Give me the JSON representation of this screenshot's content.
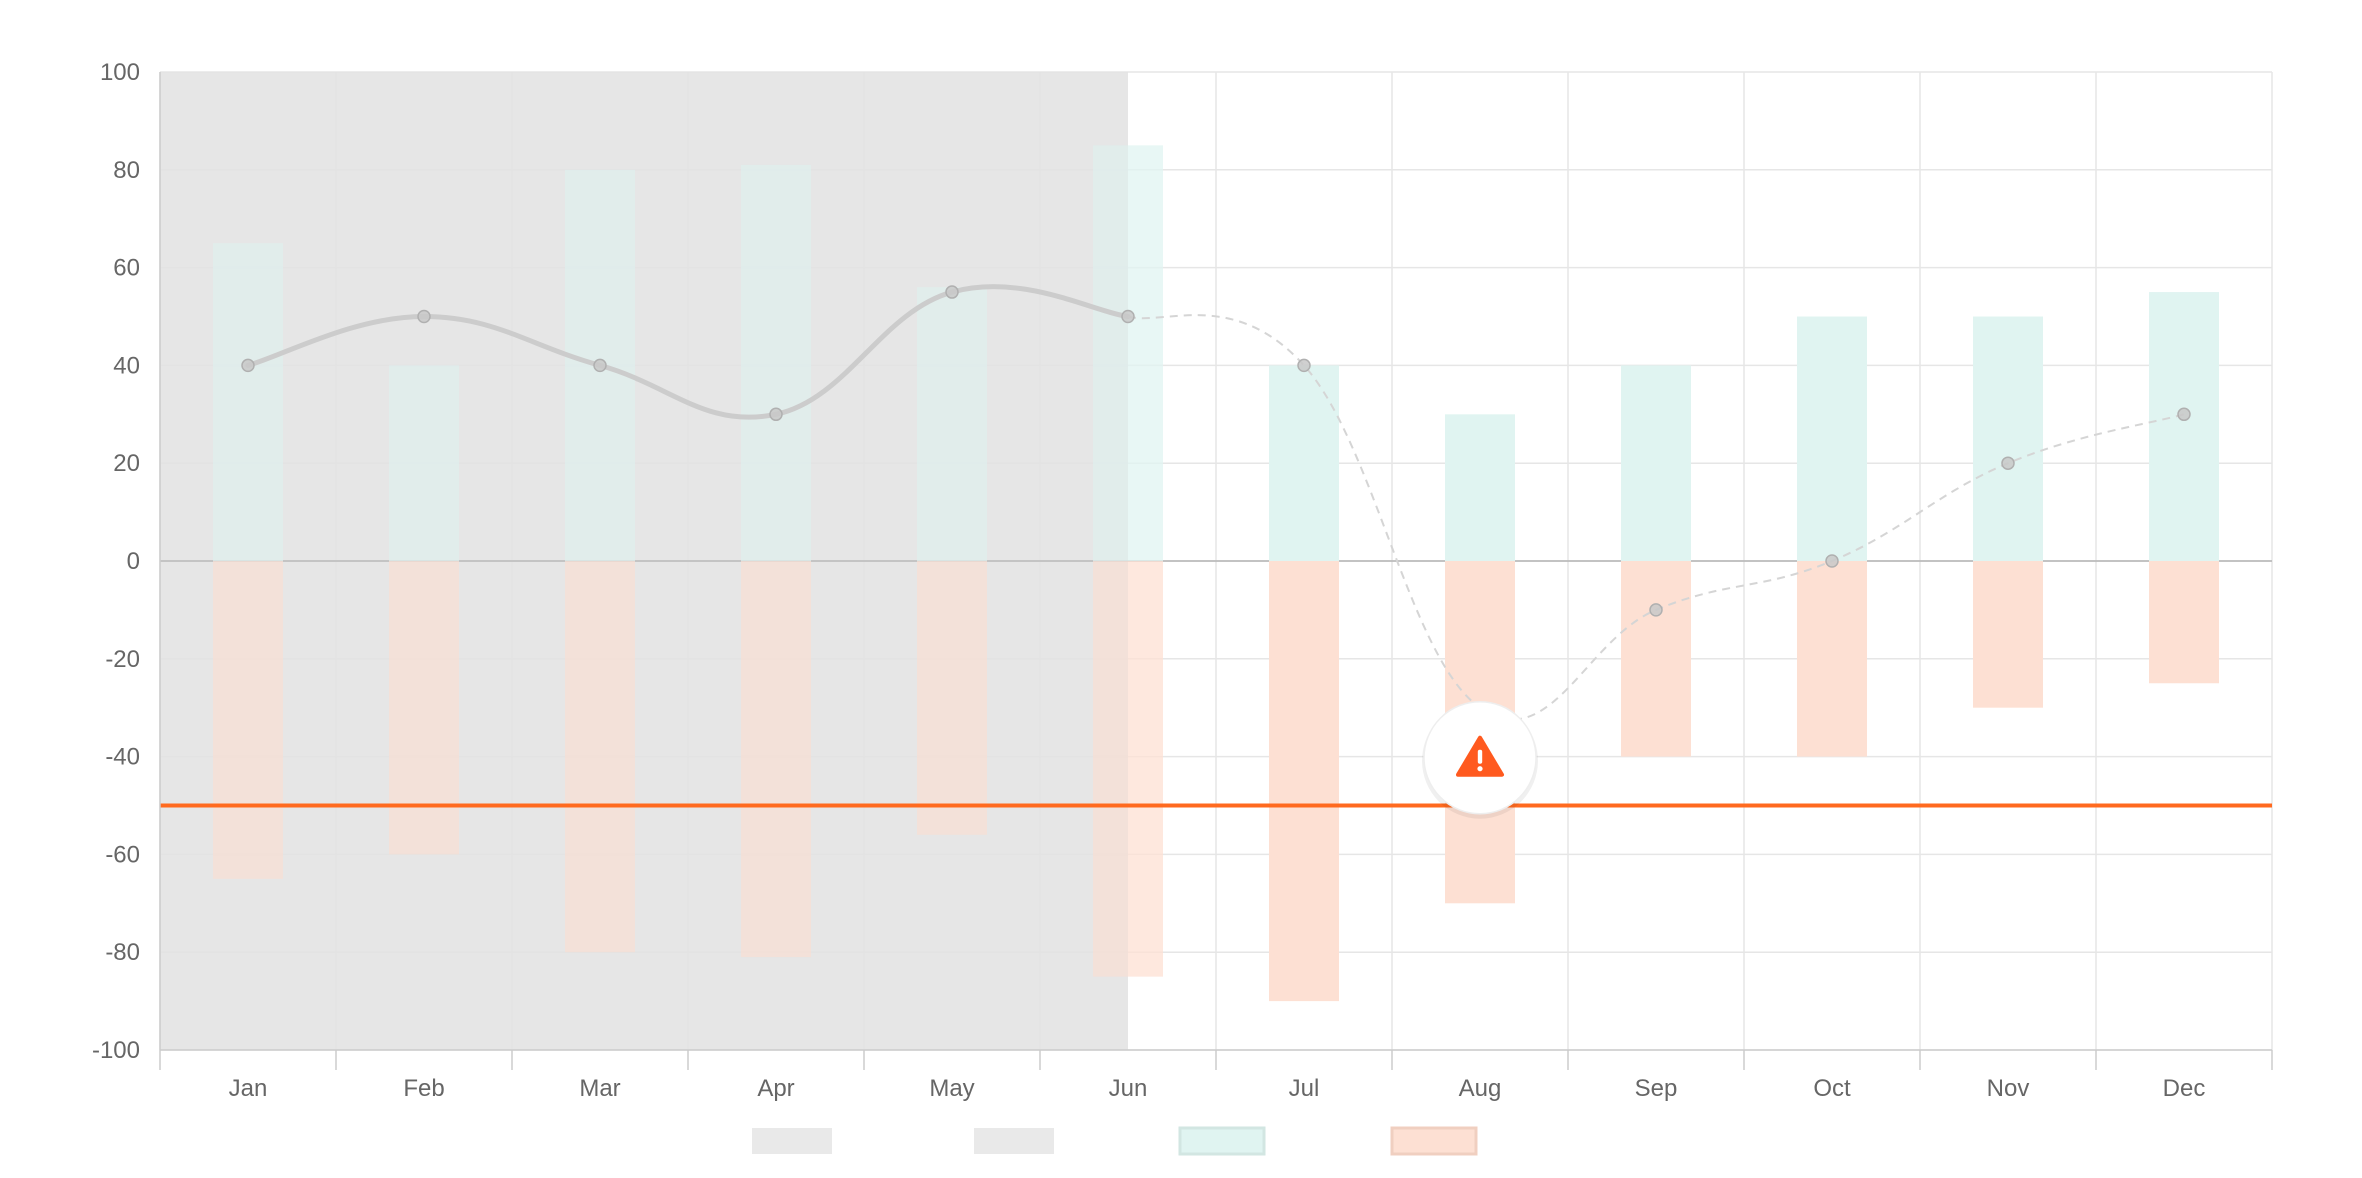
{
  "chart_data": {
    "type": "bar",
    "categories": [
      "Jan",
      "Feb",
      "Mar",
      "Apr",
      "May",
      "Jun",
      "Jul",
      "Aug",
      "Sep",
      "Oct",
      "Nov",
      "Dec"
    ],
    "series": [
      {
        "type": "bar",
        "values": [
          65,
          40,
          80,
          81,
          56,
          85,
          40,
          30,
          40,
          50,
          50,
          55
        ],
        "color": "#e0f4f1"
      },
      {
        "type": "bar",
        "values": [
          -65,
          -60,
          -80,
          -81,
          -56,
          -85,
          -90,
          -70,
          -40,
          -40,
          -30,
          -25
        ],
        "color": "#fde0d3"
      },
      {
        "type": "line",
        "values": [
          40,
          50,
          40,
          30,
          55,
          50,
          40,
          -30,
          -10,
          0,
          20,
          30
        ],
        "color": "#cccccc"
      }
    ],
    "ylim": [
      -100,
      100
    ],
    "yticks": [
      100,
      80,
      60,
      40,
      20,
      0,
      -20,
      -40,
      -60,
      -80,
      -100
    ],
    "threshold": {
      "value": -50,
      "color": "#ff6a1f"
    },
    "shaded_range": {
      "from": "Jan",
      "to": "Jun",
      "color": "#e9e9e9"
    },
    "warning_marker": {
      "category": "Aug",
      "value": -30,
      "icon": "warning-triangle-icon",
      "color": "#ff5a1f"
    },
    "grid": true,
    "legend": {
      "position": "bottom-center",
      "swatches": [
        "#e9e9e9",
        "#e9e9e9",
        "#e0f4f1",
        "#fde0d3"
      ]
    }
  }
}
